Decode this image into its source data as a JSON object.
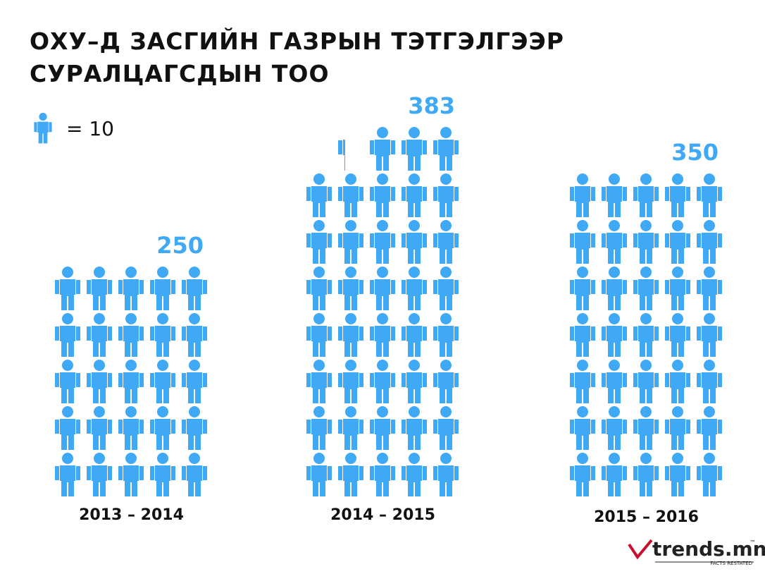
{
  "chart_data": {
    "type": "pictograph",
    "title": "ОХУ–Д ЗАСГИЙН ГАЗРЫН ТЭТГЭЛГЭЭР СУРАЛЦАГСДЫН ТОО",
    "unit": {
      "value": 10,
      "label": "= 10"
    },
    "categories": [
      "2013 – 2014",
      "2014 – 2015",
      "2015 – 2016"
    ],
    "values": [
      250,
      383,
      350
    ],
    "color": "#3fa9f5"
  },
  "logo": {
    "text": "trends.mn",
    "trademark": "™",
    "tagline": "FACTS RESTATED"
  }
}
